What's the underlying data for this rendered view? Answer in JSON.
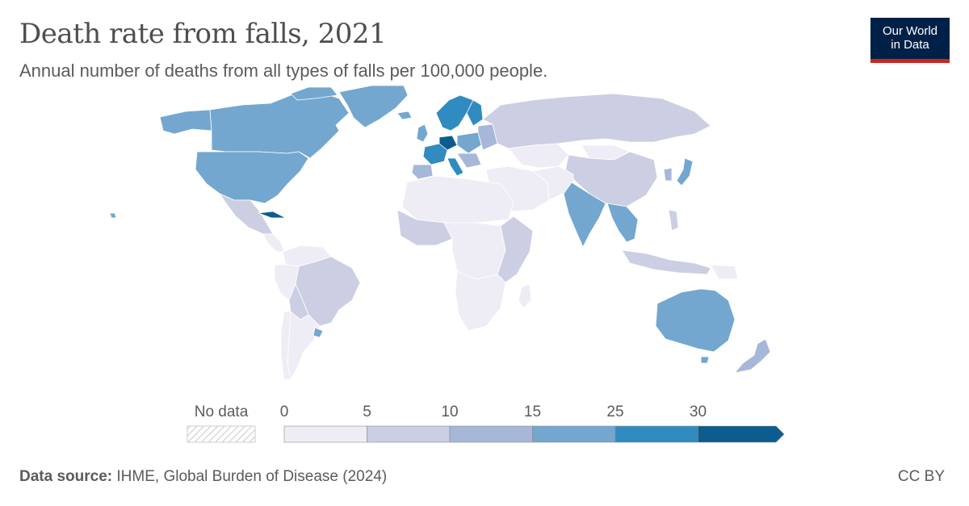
{
  "header": {
    "title": "Death rate from falls, 2021",
    "subtitle": "Annual number of deaths from all types of falls per 100,000 people."
  },
  "logo": {
    "line1": "Our World",
    "line2": "in Data"
  },
  "legend": {
    "no_data_label": "No data",
    "ticks": [
      "0",
      "5",
      "10",
      "15",
      "25",
      "30"
    ],
    "bins": [
      {
        "range": "0-5",
        "color": "#eeedf5"
      },
      {
        "range": "5-10",
        "color": "#cccee3"
      },
      {
        "range": "10-15",
        "color": "#a6b7d8"
      },
      {
        "range": "15-25",
        "color": "#73a7cf"
      },
      {
        "range": "25-30",
        "color": "#2f8bc0"
      },
      {
        "range": ">30",
        "color": "#0c5c8f"
      }
    ]
  },
  "footer": {
    "source_label": "Data source:",
    "source_text": "IHME, Global Burden of Disease (2024)",
    "license": "CC BY"
  },
  "colors": {
    "logo_bg": "#002147",
    "logo_accent": "#ce261e",
    "border": "#ffffff"
  }
}
